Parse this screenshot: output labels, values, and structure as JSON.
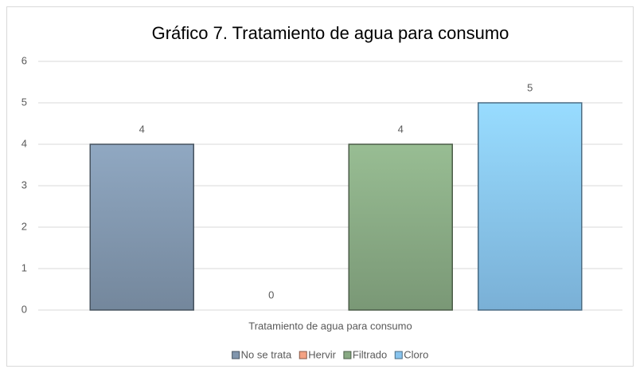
{
  "chart_data": {
    "type": "bar",
    "title": "Gráfico 7. Tratamiento de agua para consumo",
    "categories": [
      "Tratamiento de agua para consumo"
    ],
    "series": [
      {
        "name": "No se trata",
        "color": "#8196ad",
        "values": [
          4
        ]
      },
      {
        "name": "Hervir",
        "color": "#f4a283",
        "values": [
          0
        ]
      },
      {
        "name": "Filtrado",
        "color": "#88a983",
        "values": [
          4
        ]
      },
      {
        "name": "Cloro",
        "color": "#88c4ee",
        "values": [
          5
        ]
      }
    ],
    "ylim": [
      0,
      6
    ],
    "yticks": [
      0,
      1,
      2,
      3,
      4,
      5,
      6
    ],
    "grid": true,
    "legend": "bottom"
  }
}
